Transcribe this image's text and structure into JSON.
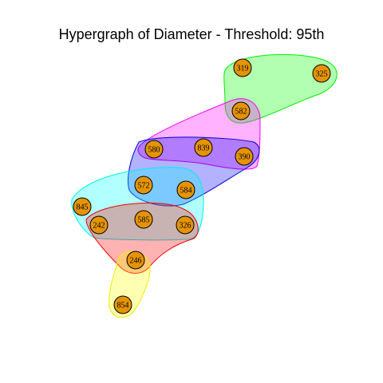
{
  "title": "Hypergraph of Diameter - Threshold: 95th",
  "node_color": "#E59400",
  "nodes": [
    "319",
    "325",
    "582",
    "580",
    "839",
    "390",
    "572",
    "584",
    "845",
    "242",
    "585",
    "326",
    "246",
    "854"
  ],
  "hyperedges": [
    {
      "members": [
        "319",
        "325",
        "582"
      ],
      "fill": "#00FF00",
      "stroke": "#00EE00"
    },
    {
      "members": [
        "582",
        "580",
        "839",
        "390"
      ],
      "fill": "#FF00FF",
      "stroke": "#EE00EE"
    },
    {
      "members": [
        "580",
        "390",
        "572",
        "584"
      ],
      "fill": "#0000FF",
      "stroke": "#0000CD"
    },
    {
      "members": [
        "845",
        "242",
        "585",
        "326",
        "572",
        "584"
      ],
      "fill": "#00FFFF",
      "stroke": "#00EEEE"
    },
    {
      "members": [
        "242",
        "585",
        "326",
        "246"
      ],
      "fill": "#FF0000",
      "stroke": "#EE0000"
    },
    {
      "members": [
        "246",
        "854"
      ],
      "fill": "#FFFF00",
      "stroke": "#EEEE00"
    }
  ]
}
